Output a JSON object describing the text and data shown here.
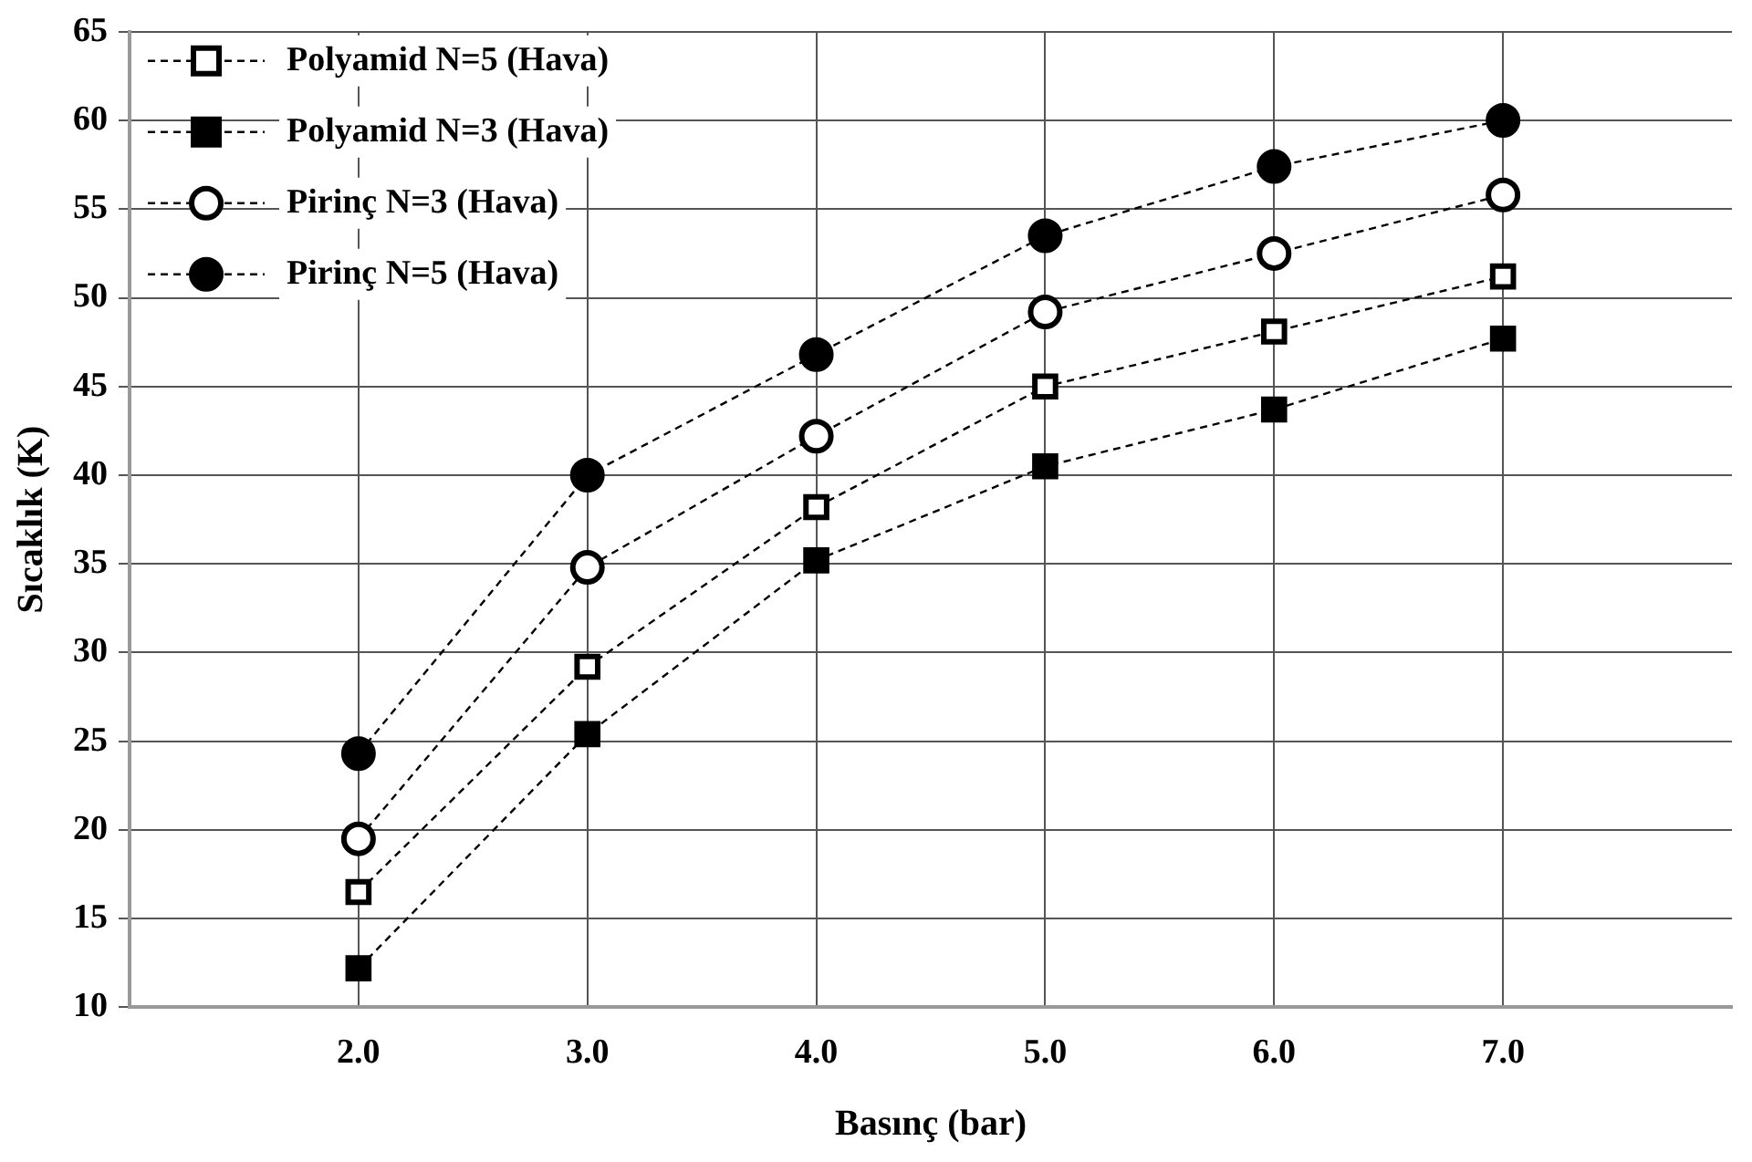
{
  "chart_data": {
    "type": "line",
    "xlabel": "Basınç (bar)",
    "ylabel": "Sıcaklık (K)",
    "x": [
      2,
      3,
      4,
      5,
      6,
      7
    ],
    "xlim": [
      1,
      8
    ],
    "xticks": [
      {
        "value": 2,
        "label": "2.0"
      },
      {
        "value": 3,
        "label": "3.0"
      },
      {
        "value": 4,
        "label": "4.0"
      },
      {
        "value": 5,
        "label": "5.0"
      },
      {
        "value": 6,
        "label": "6.0"
      },
      {
        "value": 7,
        "label": "7.0"
      }
    ],
    "ylim": [
      10,
      65
    ],
    "yticks": [
      10,
      15,
      20,
      25,
      30,
      35,
      40,
      45,
      50,
      55,
      60,
      65
    ],
    "grid": true,
    "legend": "top left",
    "line_style": "dashed",
    "series": [
      {
        "name": "Polyamid N=5 (Hava)",
        "color": "#000000",
        "marker": "square",
        "values": [
          16.5,
          29.2,
          38.2,
          45.0,
          48.1,
          51.2
        ]
      },
      {
        "name": "Polyamid N=3 (Hava)",
        "color": "#000000",
        "marker": "square",
        "values": [
          12.2,
          25.4,
          35.2,
          40.5,
          43.7,
          47.7
        ]
      },
      {
        "name": "Pirinç N=3 (Hava)",
        "color": "#000000",
        "marker": "circle",
        "values": [
          19.5,
          34.8,
          42.2,
          49.2,
          52.5,
          55.8
        ]
      },
      {
        "name": "Pirinç N=5 (Hava)",
        "color": "#000000",
        "marker": "circle",
        "values": [
          24.3,
          40.0,
          46.8,
          53.5,
          57.4,
          60.0
        ]
      }
    ]
  }
}
